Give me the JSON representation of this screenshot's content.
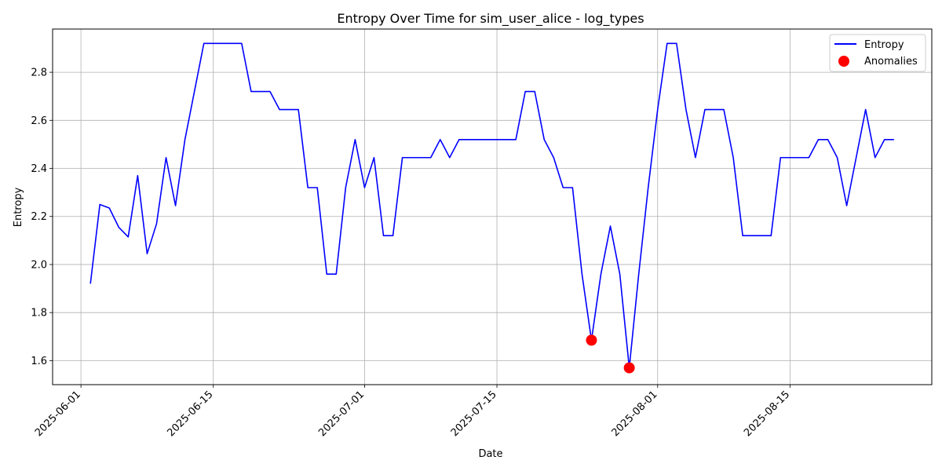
{
  "chart_data": {
    "type": "line",
    "title": "Entropy Over Time for sim_user_alice - log_types",
    "xlabel": "Date",
    "ylabel": "Entropy",
    "xlim": [
      "2025-05-29",
      "2025-08-30"
    ],
    "ylim": [
      1.5,
      2.98
    ],
    "x_ticks": [
      "2025-06-01",
      "2025-06-15",
      "2025-07-01",
      "2025-07-15",
      "2025-08-01",
      "2025-08-15"
    ],
    "y_ticks": [
      1.6,
      1.8,
      2.0,
      2.2,
      2.4,
      2.6,
      2.8
    ],
    "grid": true,
    "legend_position": "top-right",
    "colors": {
      "entropy": "#0000ff",
      "anomalies": "#ff0000"
    },
    "series": [
      {
        "name": "Entropy",
        "kind": "line",
        "x": [
          "2025-06-02",
          "2025-06-03",
          "2025-06-04",
          "2025-06-05",
          "2025-06-06",
          "2025-06-07",
          "2025-06-08",
          "2025-06-09",
          "2025-06-10",
          "2025-06-11",
          "2025-06-12",
          "2025-06-13",
          "2025-06-14",
          "2025-06-15",
          "2025-06-16",
          "2025-06-17",
          "2025-06-18",
          "2025-06-19",
          "2025-06-20",
          "2025-06-21",
          "2025-06-22",
          "2025-06-23",
          "2025-06-24",
          "2025-06-25",
          "2025-06-26",
          "2025-06-27",
          "2025-06-28",
          "2025-06-29",
          "2025-06-30",
          "2025-07-01",
          "2025-07-02",
          "2025-07-03",
          "2025-07-04",
          "2025-07-05",
          "2025-07-06",
          "2025-07-07",
          "2025-07-08",
          "2025-07-09",
          "2025-07-10",
          "2025-07-11",
          "2025-07-12",
          "2025-07-13",
          "2025-07-14",
          "2025-07-15",
          "2025-07-16",
          "2025-07-17",
          "2025-07-18",
          "2025-07-19",
          "2025-07-20",
          "2025-07-21",
          "2025-07-22",
          "2025-07-23",
          "2025-07-24",
          "2025-07-25",
          "2025-07-26",
          "2025-07-27",
          "2025-07-28",
          "2025-07-29",
          "2025-07-30",
          "2025-07-31",
          "2025-08-01",
          "2025-08-02",
          "2025-08-03",
          "2025-08-04",
          "2025-08-05",
          "2025-08-06",
          "2025-08-07",
          "2025-08-08",
          "2025-08-09",
          "2025-08-10",
          "2025-08-11",
          "2025-08-12",
          "2025-08-13",
          "2025-08-14",
          "2025-08-15",
          "2025-08-16",
          "2025-08-17",
          "2025-08-18",
          "2025-08-19",
          "2025-08-20",
          "2025-08-21",
          "2025-08-22",
          "2025-08-23",
          "2025-08-24",
          "2025-08-25",
          "2025-08-26"
        ],
        "y": [
          1.92,
          2.25,
          2.235,
          2.155,
          2.115,
          2.37,
          2.045,
          2.17,
          2.445,
          2.245,
          2.52,
          2.72,
          2.92,
          2.92,
          2.92,
          2.92,
          2.92,
          2.72,
          2.72,
          2.72,
          2.645,
          2.645,
          2.645,
          2.32,
          2.32,
          1.96,
          1.96,
          2.32,
          2.52,
          2.32,
          2.445,
          2.12,
          2.12,
          2.445,
          2.445,
          2.445,
          2.445,
          2.52,
          2.445,
          2.52,
          2.52,
          2.52,
          2.52,
          2.52,
          2.52,
          2.52,
          2.72,
          2.72,
          2.52,
          2.445,
          2.32,
          2.32,
          1.96,
          1.685,
          1.96,
          2.16,
          1.96,
          1.57,
          1.96,
          2.32,
          2.645,
          2.92,
          2.92,
          2.645,
          2.445,
          2.645,
          2.645,
          2.645,
          2.445,
          2.12,
          2.12,
          2.12,
          2.12,
          2.445,
          2.445,
          2.445,
          2.445,
          2.52,
          2.52,
          2.445,
          2.245,
          2.445,
          2.645,
          2.445,
          2.52,
          2.52
        ]
      },
      {
        "name": "Anomalies",
        "kind": "scatter",
        "x": [
          "2025-07-25",
          "2025-07-29"
        ],
        "y": [
          1.685,
          1.57
        ]
      }
    ]
  }
}
